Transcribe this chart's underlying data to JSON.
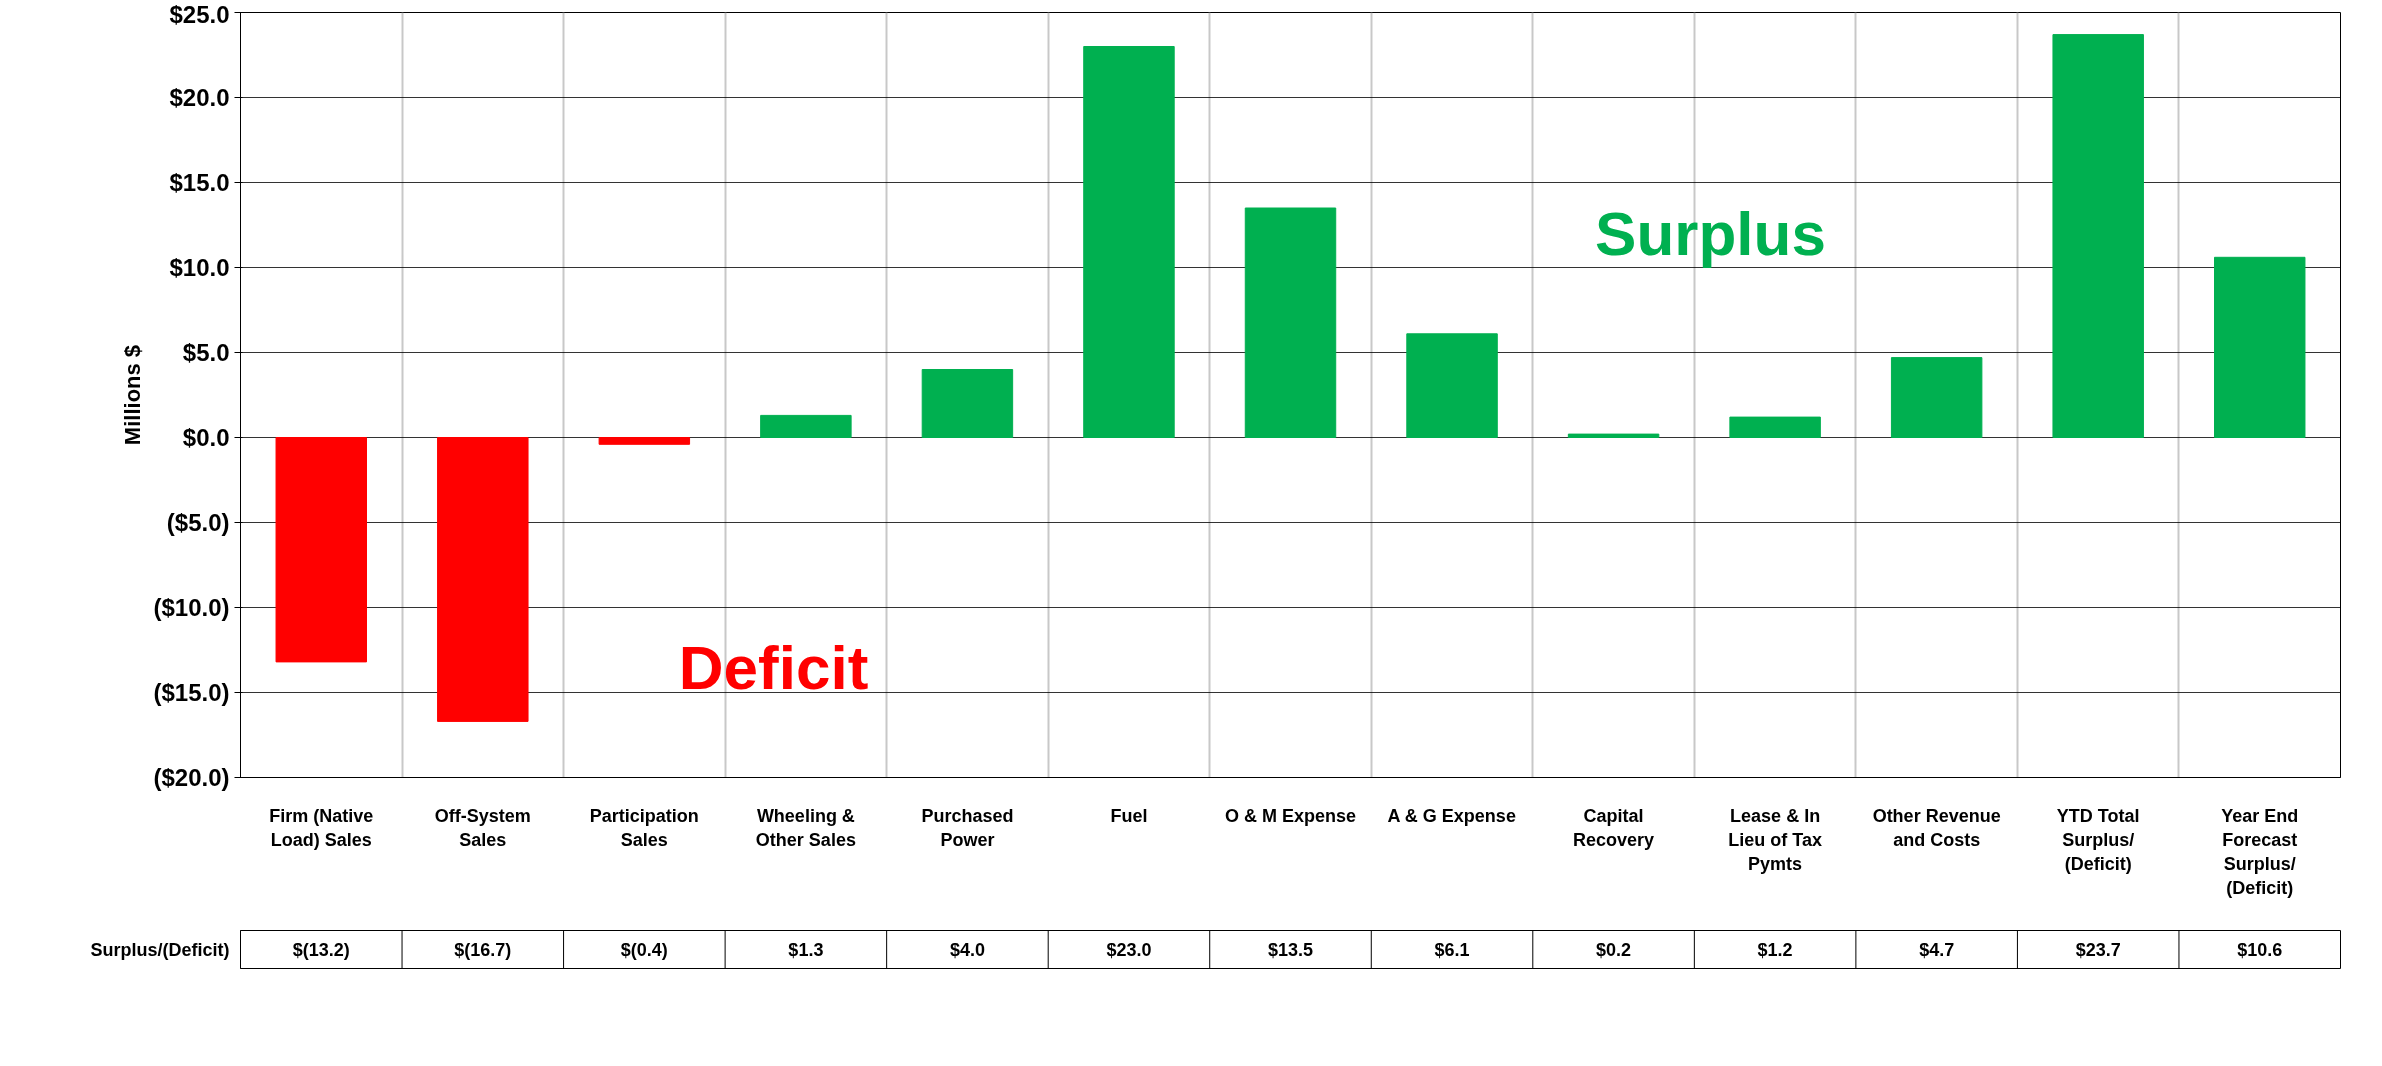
{
  "chart_data": {
    "type": "bar",
    "ylabel": "Millions $",
    "categories": [
      "Firm (Native Load) Sales",
      "Off-System Sales",
      "Participation Sales",
      "Wheeling & Other Sales",
      "Purchased Power",
      "Fuel",
      "O & M Expense",
      "A & G Expense",
      "Capital Recovery",
      "Lease & In Lieu of Tax Pymts",
      "Other Revenue and Costs",
      "YTD Total Surplus/ (Deficit)",
      "Year End Forecast Surplus/ (Deficit)"
    ],
    "series": [
      {
        "name": "Surplus/(Deficit)",
        "values": [
          -13.2,
          -16.7,
          -0.4,
          1.3,
          4.0,
          23.0,
          13.5,
          6.1,
          0.2,
          1.2,
          4.7,
          23.7,
          10.6
        ],
        "colors": [
          "#ff0000",
          "#ff0000",
          "#ff0000",
          "#00b050",
          "#00b050",
          "#00b050",
          "#00b050",
          "#00b050",
          "#00b050",
          "#00b050",
          "#00b050",
          "#00b050",
          "#00b050"
        ],
        "value_labels": [
          "$(13.2)",
          "$(16.7)",
          "$(0.4)",
          "$1.3",
          "$4.0",
          "$23.0",
          "$13.5",
          "$6.1",
          "$0.2",
          "$1.2",
          "$4.7",
          "$23.7",
          "$10.6"
        ]
      }
    ],
    "ylim": [
      -20,
      25
    ],
    "yticks": [
      {
        "value": -20,
        "label": "($20.0)"
      },
      {
        "value": -15,
        "label": "($15.0)"
      },
      {
        "value": -10,
        "label": "($10.0)"
      },
      {
        "value": -5,
        "label": "($5.0)"
      },
      {
        "value": 0,
        "label": "$0.0"
      },
      {
        "value": 5,
        "label": "$5.0"
      },
      {
        "value": 10,
        "label": "$10.0"
      },
      {
        "value": 15,
        "label": "$15.0"
      },
      {
        "value": 20,
        "label": "$20.0"
      },
      {
        "value": 25,
        "label": "$25.0"
      }
    ],
    "grid": true,
    "annotations": [
      "Surplus",
      "Deficit"
    ]
  }
}
